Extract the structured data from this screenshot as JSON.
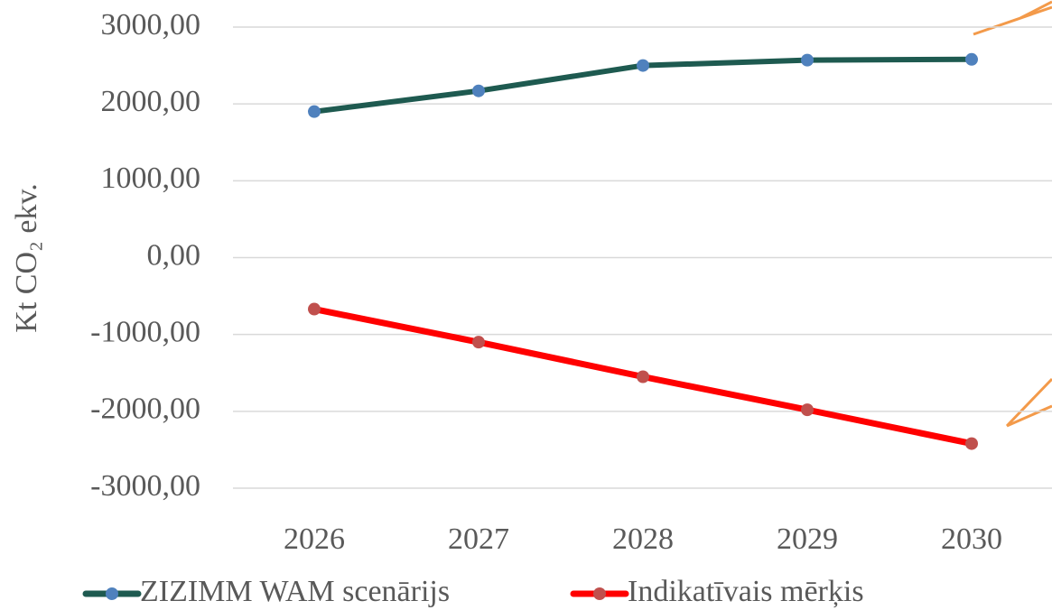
{
  "chart_data": {
    "type": "line",
    "ylabel": "Kt CO₂ ekv.",
    "categories": [
      "2026",
      "2027",
      "2028",
      "2029",
      "2030"
    ],
    "series": [
      {
        "name": "ZIZIMM WAM scenārijs",
        "color": "#1e5a50",
        "marker_color": "#4f81bd",
        "values": [
          1900,
          2170,
          2500,
          2570,
          2580
        ]
      },
      {
        "name": "Indikatīvais mērķis",
        "color": "#ff0000",
        "marker_color": "#c0504d",
        "values": [
          -670,
          -1100,
          -1550,
          -1980,
          -2420
        ]
      }
    ],
    "ylim": [
      -3000,
      3000
    ],
    "yticks": [
      {
        "value": -3000,
        "label": "-3000,00"
      },
      {
        "value": -2000,
        "label": "-2000,00"
      },
      {
        "value": -1000,
        "label": "-1000,00"
      },
      {
        "value": 0,
        "label": "0,00"
      },
      {
        "value": 1000,
        "label": "1000,00"
      },
      {
        "value": 2000,
        "label": "2000,00"
      },
      {
        "value": 3000,
        "label": "3000,00"
      }
    ],
    "grid": true,
    "legend": "bottom"
  }
}
